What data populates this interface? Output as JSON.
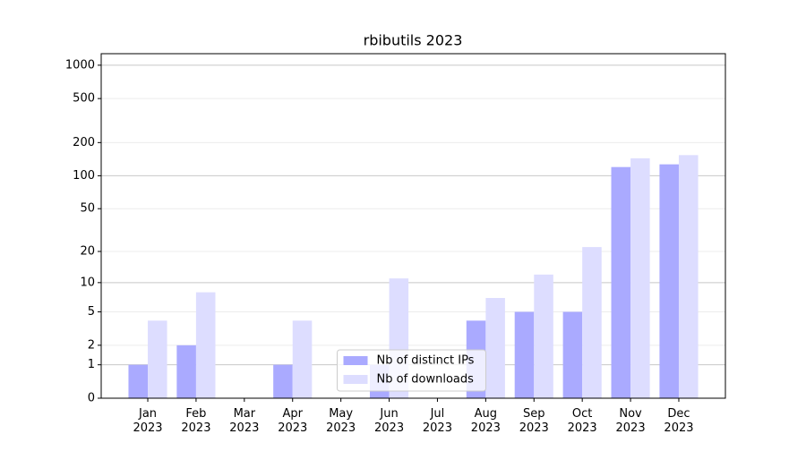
{
  "chart_data": {
    "type": "bar",
    "title": "rbibutils 2023",
    "categories": [
      "Jan\n2023",
      "Feb\n2023",
      "Mar\n2023",
      "Apr\n2023",
      "May\n2023",
      "Jun\n2023",
      "Jul\n2023",
      "Aug\n2023",
      "Sep\n2023",
      "Oct\n2023",
      "Nov\n2023",
      "Dec\n2023"
    ],
    "series": [
      {
        "name": "Nb of distinct IPs",
        "color": "#aaaaff",
        "values": [
          1,
          2,
          0,
          1,
          0,
          1,
          0,
          4,
          5,
          5,
          120,
          127
        ]
      },
      {
        "name": "Nb of downloads",
        "color": "#ddddff",
        "values": [
          4,
          8,
          0,
          4,
          0,
          11,
          0,
          7,
          12,
          22,
          144,
          154
        ]
      }
    ],
    "yscale": "log1p",
    "ylim": [
      0,
      1270
    ],
    "yticks": [
      0,
      1,
      2,
      5,
      10,
      20,
      50,
      100,
      200,
      500,
      1000
    ],
    "grid": true,
    "legend": "lower center"
  }
}
